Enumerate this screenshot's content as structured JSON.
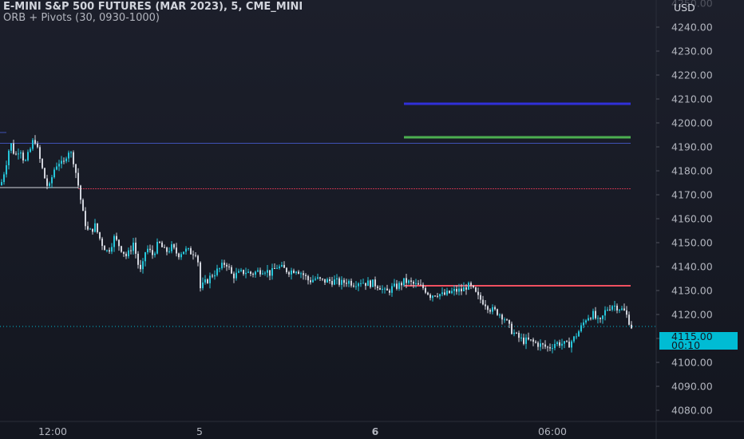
{
  "header": {
    "title": "E-MINI S&P 500 FUTURES (MAR 2023), 5, CME_MINI",
    "indicator": "ORB + Pivots (30, 0930-1000)"
  },
  "price_axis": {
    "currency": "USD"
  },
  "last_price": {
    "value": "4115.00",
    "countdown": "00:10",
    "color": "#00bcd4"
  },
  "chart_data": {
    "type": "candlestick",
    "symbol": "ES1!",
    "timeframe": "5",
    "ylim": [
      4076,
      4256
    ],
    "y_ticks": [
      "4080.00",
      "4090.00",
      "4100.00",
      "4110.00",
      "4120.00",
      "4130.00",
      "4140.00",
      "4150.00",
      "4160.00",
      "4170.00",
      "4180.00",
      "4190.00",
      "4200.00",
      "4210.00",
      "4220.00",
      "4230.00",
      "4240.00"
    ],
    "x_ticks": [
      "12:00",
      "5",
      "6",
      "06:00"
    ],
    "x_tick_bold": [
      "6"
    ],
    "colors": {
      "up": "#26c6da",
      "down": "#d1d4dc"
    },
    "close_path": [
      [
        0,
        4174
      ],
      [
        6,
        4182
      ],
      [
        12,
        4192
      ],
      [
        18,
        4186
      ],
      [
        24,
        4190
      ],
      [
        30,
        4183
      ],
      [
        36,
        4188
      ],
      [
        42,
        4194
      ],
      [
        48,
        4186
      ],
      [
        54,
        4178
      ],
      [
        60,
        4172
      ],
      [
        66,
        4180
      ],
      [
        72,
        4184
      ],
      [
        78,
        4182
      ],
      [
        84,
        4189
      ],
      [
        90,
        4186
      ],
      [
        96,
        4176
      ],
      [
        100,
        4168
      ],
      [
        104,
        4160
      ],
      [
        110,
        4154
      ],
      [
        118,
        4157
      ],
      [
        126,
        4150
      ],
      [
        134,
        4146
      ],
      [
        142,
        4152
      ],
      [
        150,
        4148
      ],
      [
        158,
        4144
      ],
      [
        166,
        4150
      ],
      [
        172,
        4141
      ],
      [
        176,
        4137
      ],
      [
        182,
        4148
      ],
      [
        190,
        4145
      ],
      [
        198,
        4150
      ],
      [
        206,
        4146
      ],
      [
        214,
        4148
      ],
      [
        222,
        4145
      ],
      [
        230,
        4147
      ],
      [
        238,
        4146
      ],
      [
        246,
        4146
      ],
      [
        250,
        4131
      ],
      [
        258,
        4134
      ],
      [
        266,
        4137
      ],
      [
        274,
        4139
      ],
      [
        282,
        4142
      ],
      [
        290,
        4136
      ],
      [
        298,
        4137
      ],
      [
        306,
        4138
      ],
      [
        314,
        4137
      ],
      [
        322,
        4138
      ],
      [
        330,
        4139
      ],
      [
        338,
        4137
      ],
      [
        346,
        4140
      ],
      [
        354,
        4139
      ],
      [
        362,
        4138
      ],
      [
        370,
        4139
      ],
      [
        378,
        4137
      ],
      [
        386,
        4134
      ],
      [
        394,
        4135
      ],
      [
        402,
        4134
      ],
      [
        410,
        4134
      ],
      [
        418,
        4134
      ],
      [
        426,
        4133
      ],
      [
        434,
        4134
      ],
      [
        442,
        4133
      ],
      [
        450,
        4134
      ],
      [
        458,
        4133
      ],
      [
        466,
        4133
      ],
      [
        474,
        4132
      ],
      [
        482,
        4129
      ],
      [
        490,
        4131
      ],
      [
        498,
        4132
      ],
      [
        506,
        4134
      ],
      [
        514,
        4133
      ],
      [
        522,
        4132
      ],
      [
        530,
        4131
      ],
      [
        538,
        4128
      ],
      [
        546,
        4129
      ],
      [
        554,
        4128
      ],
      [
        562,
        4129
      ],
      [
        570,
        4130
      ],
      [
        578,
        4130
      ],
      [
        584,
        4132
      ],
      [
        590,
        4131
      ],
      [
        598,
        4127
      ],
      [
        606,
        4125
      ],
      [
        614,
        4122
      ],
      [
        622,
        4121
      ],
      [
        630,
        4119
      ],
      [
        638,
        4114
      ],
      [
        646,
        4111
      ],
      [
        654,
        4109
      ],
      [
        662,
        4109
      ],
      [
        670,
        4108
      ],
      [
        678,
        4107
      ],
      [
        686,
        4106
      ],
      [
        694,
        4108
      ],
      [
        702,
        4108
      ],
      [
        710,
        4107
      ],
      [
        718,
        4110
      ],
      [
        726,
        4114
      ],
      [
        734,
        4119
      ],
      [
        742,
        4120
      ],
      [
        750,
        4116
      ],
      [
        758,
        4122
      ],
      [
        766,
        4124
      ],
      [
        774,
        4123
      ],
      [
        782,
        4121
      ],
      [
        790,
        4115
      ]
    ],
    "sessions_gap_after_x": [
      246
    ],
    "levels": [
      {
        "x_start": 0,
        "x_end": 790,
        "value": 4191.5,
        "color": "#3f51b5",
        "width": 1
      },
      {
        "x_start": 0,
        "x_end": 8,
        "value": 4196,
        "color": "#3f51b5",
        "width": 1
      },
      {
        "x_start": 98,
        "x_end": 790,
        "value": 4172.5,
        "color": "#c2334d",
        "width": 1
      },
      {
        "x_start": 0,
        "x_end": 98,
        "value": 4173,
        "color": "#d1d4dc",
        "width": 1
      },
      {
        "x_start": 506,
        "x_end": 790,
        "value": 4208,
        "color": "#3030d8",
        "width": 3
      },
      {
        "x_start": 506,
        "x_end": 790,
        "value": 4194,
        "color": "#4caf50",
        "width": 3
      },
      {
        "x_start": 506,
        "x_end": 790,
        "value": 4132,
        "color": "#f05060",
        "width": 2
      }
    ],
    "last_price_line": 4115
  }
}
